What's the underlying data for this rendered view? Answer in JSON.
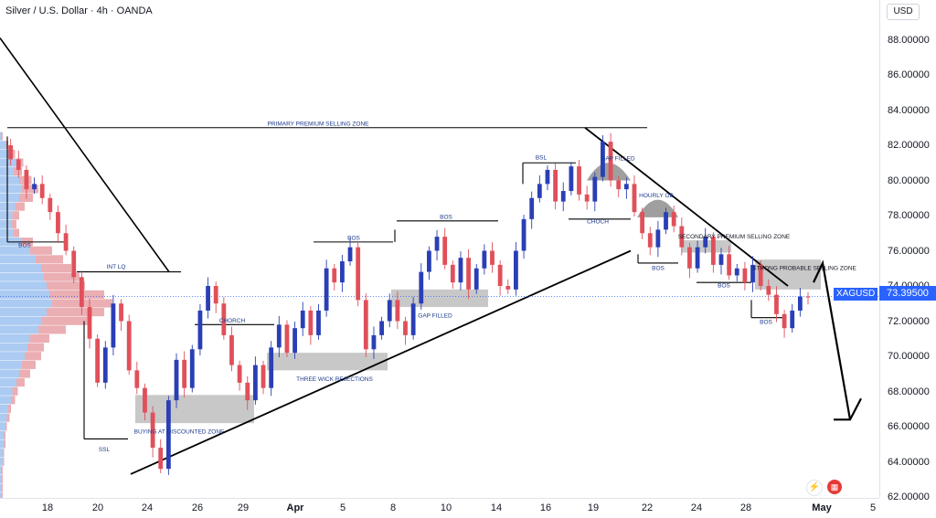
{
  "header": {
    "title": "Silver / U.S. Dollar · 4h · OANDA"
  },
  "price_axis": {
    "currency": "USD",
    "ticks": [
      "88.00000",
      "86.00000",
      "84.00000",
      "82.00000",
      "80.00000",
      "78.00000",
      "76.00000",
      "74.00000",
      "72.00000",
      "70.00000",
      "68.00000",
      "66.00000",
      "64.00000",
      "62.00000"
    ]
  },
  "last_price": {
    "symbol": "XAGUSD",
    "value": "73.39500"
  },
  "time_axis": {
    "labels": [
      {
        "text": "18",
        "bold": false
      },
      {
        "text": "20",
        "bold": false
      },
      {
        "text": "24",
        "bold": false
      },
      {
        "text": "26",
        "bold": false
      },
      {
        "text": "29",
        "bold": false
      },
      {
        "text": "Apr",
        "bold": true
      },
      {
        "text": "5",
        "bold": false
      },
      {
        "text": "8",
        "bold": false
      },
      {
        "text": "10",
        "bold": false
      },
      {
        "text": "14",
        "bold": false
      },
      {
        "text": "16",
        "bold": false
      },
      {
        "text": "19",
        "bold": false
      },
      {
        "text": "22",
        "bold": false
      },
      {
        "text": "24",
        "bold": false
      },
      {
        "text": "28",
        "bold": false
      },
      {
        "text": "May",
        "bold": true
      },
      {
        "text": "5",
        "bold": false
      }
    ]
  },
  "annotations": {
    "primary_zone": "PRIMARY PREMIUM SELLING ZONE",
    "secondary_zone": "SECONDARY PREMIUM SELLING ZONE",
    "strong_zone": "STRONG PROBABLE SELLING ZONE",
    "bsl": "BSL",
    "gap_filled_top": "GAP FILLED",
    "gap_filled_mid": "GAP FILLED",
    "hourly_ob": "HOURLY OB",
    "choch_1": "CHOCH",
    "choch_2": "CHORCH",
    "bos_1": "BOS",
    "bos_2": "BOS",
    "bos_3": "BOS",
    "bos_4": "BOS",
    "bos_5": "BOS",
    "bos_6": "BOS",
    "int_lq": "INT LQ",
    "ssl": "SSL",
    "three_wick": "THREE WICK REJECTIONS",
    "discount_zone": "BUYING AT DISCOUNTED ZONE"
  },
  "icons": {
    "flash": "flash-icon",
    "flag": "us-flag-icon"
  },
  "colors": {
    "bull": "#2a3fb5",
    "bear": "#e0505a",
    "accent": "#2962ff",
    "zone": "#b8b8b8"
  },
  "chart_data": {
    "type": "candlestick",
    "symbol": "XAGUSD",
    "timeframe": "4h",
    "ylim": [
      62,
      89
    ],
    "last_price": 73.395,
    "x_labels": [
      "18",
      "20",
      "24",
      "26",
      "29",
      "Apr",
      "5",
      "8",
      "10",
      "14",
      "16",
      "19",
      "22",
      "24",
      "28",
      "May",
      "5"
    ],
    "ohlc_path": [
      82.0,
      81.2,
      80.6,
      79.5,
      79.8,
      79.0,
      78.2,
      77.0,
      76.0,
      74.5,
      72.8,
      71.0,
      68.5,
      70.5,
      73.0,
      72.0,
      69.2,
      68.2,
      66.8,
      64.8,
      63.6,
      67.5,
      69.8,
      68.2,
      70.4,
      72.6,
      74.0,
      73.0,
      71.2,
      69.5,
      68.5,
      67.5,
      69.5,
      68.2,
      70.5,
      71.8,
      70.2,
      71.6,
      72.6,
      71.2,
      72.6,
      75.0,
      74.2,
      75.4,
      76.2,
      73.2,
      70.4,
      71.2,
      72.0,
      73.2,
      72.0,
      71.2,
      73.0,
      74.8,
      76.0,
      76.8,
      75.2,
      74.2,
      75.6,
      73.8,
      75.0,
      76.0,
      75.2,
      74.0,
      73.8,
      76.0,
      77.8,
      79.0,
      79.8,
      80.6,
      78.8,
      79.4,
      80.8,
      79.2,
      78.8,
      80.2,
      82.2,
      80.0,
      79.5,
      79.8,
      78.2,
      77.0,
      76.2,
      77.2,
      78.2,
      77.4,
      76.2,
      75.0,
      76.2,
      76.8,
      75.2,
      75.8,
      74.6,
      75.0,
      74.2,
      75.2,
      74.0,
      73.5,
      72.4,
      71.6,
      72.6,
      73.4,
      73.395
    ],
    "volume_profile": {
      "price_levels": [
        82.5,
        82.0,
        81.5,
        81.0,
        80.5,
        80.0,
        79.5,
        79.0,
        78.5,
        78.0,
        77.5,
        77.0,
        76.5,
        76.0,
        75.5,
        75.0,
        74.5,
        74.0,
        73.5,
        73.0,
        72.5,
        72.0,
        71.5,
        71.0,
        70.5,
        70.0,
        69.5,
        69.0,
        68.5,
        68.0,
        67.5,
        67.0,
        66.5,
        66.0,
        65.5,
        65.0,
        64.5,
        64.0,
        63.5,
        63.0,
        62.5,
        62.0
      ],
      "up_volume": [
        1,
        4,
        8,
        12,
        10,
        14,
        16,
        14,
        11,
        9,
        8,
        10,
        16,
        22,
        26,
        30,
        32,
        34,
        36,
        38,
        34,
        30,
        28,
        22,
        20,
        18,
        16,
        14,
        12,
        9,
        8,
        6,
        5,
        4,
        3,
        3,
        2,
        2,
        1,
        1,
        1,
        1
      ],
      "down_volume": [
        1,
        2,
        3,
        5,
        6,
        9,
        12,
        10,
        7,
        5,
        4,
        4,
        8,
        16,
        20,
        22,
        26,
        28,
        40,
        44,
        42,
        34,
        20,
        14,
        12,
        12,
        10,
        8,
        6,
        4,
        3,
        2,
        2,
        1,
        1,
        1,
        1,
        1,
        1,
        1,
        1,
        1
      ]
    },
    "annotations": [
      {
        "label": "PRIMARY PREMIUM SELLING ZONE",
        "type": "horizontal_line",
        "price": 83.0
      },
      {
        "label": "BSL",
        "type": "horizontal_line",
        "price": 81.0
      },
      {
        "label": "GAP FILLED",
        "type": "zone",
        "price_range": [
          80.0,
          81.0
        ]
      },
      {
        "label": "HOURLY OB",
        "type": "zone",
        "price_range": [
          77.8,
          79.0
        ]
      },
      {
        "label": "CHOCH",
        "type": "horizontal_line",
        "price": 77.8
      },
      {
        "label": "BOS",
        "type": "horizontal_line",
        "price": 77.7
      },
      {
        "label": "BOS",
        "type": "horizontal_line",
        "price": 76.5
      },
      {
        "label": "SECONDARY PREMIUM SELLING ZONE",
        "type": "zone",
        "price_range": [
          75.9,
          76.6
        ]
      },
      {
        "label": "STRONG PROBABLE SELLING ZONE",
        "type": "zone",
        "price_range": [
          73.8,
          75.5
        ]
      },
      {
        "label": "BOS",
        "type": "horizontal_line",
        "price": 75.3
      },
      {
        "label": "BOS",
        "type": "horizontal_line",
        "price": 74.2
      },
      {
        "label": "BOS",
        "type": "horizontal_line",
        "price": 72.2
      },
      {
        "label": "INT LQ",
        "type": "horizontal_line",
        "price": 74.8
      },
      {
        "label": "CHORCH",
        "type": "horizontal_line",
        "price": 71.8
      },
      {
        "label": "GAP FILLED",
        "type": "zone",
        "price_range": [
          72.8,
          73.8
        ]
      },
      {
        "label": "THREE WICK REJECTIONS",
        "type": "zone",
        "price_range": [
          69.2,
          70.2
        ]
      },
      {
        "label": "BUYING AT DISCOUNTED ZONE",
        "type": "zone",
        "price_range": [
          66.2,
          67.8
        ]
      },
      {
        "label": "SSL",
        "type": "horizontal_line",
        "price": 65.3
      },
      {
        "label": "BOS",
        "type": "horizontal_line",
        "price": 76.8
      }
    ],
    "trendlines": [
      {
        "name": "descending",
        "from": [
          0.0,
          88.1
        ],
        "to": [
          0.19,
          74.8
        ]
      },
      {
        "name": "ascending",
        "from": [
          0.15,
          63.3
        ],
        "to": [
          0.7,
          76.0
        ]
      },
      {
        "name": "descending_right",
        "from": [
          0.66,
          83.0
        ],
        "to": [
          0.89,
          74.0
        ]
      }
    ],
    "projection": {
      "direction": "down",
      "target": 66.0
    }
  }
}
